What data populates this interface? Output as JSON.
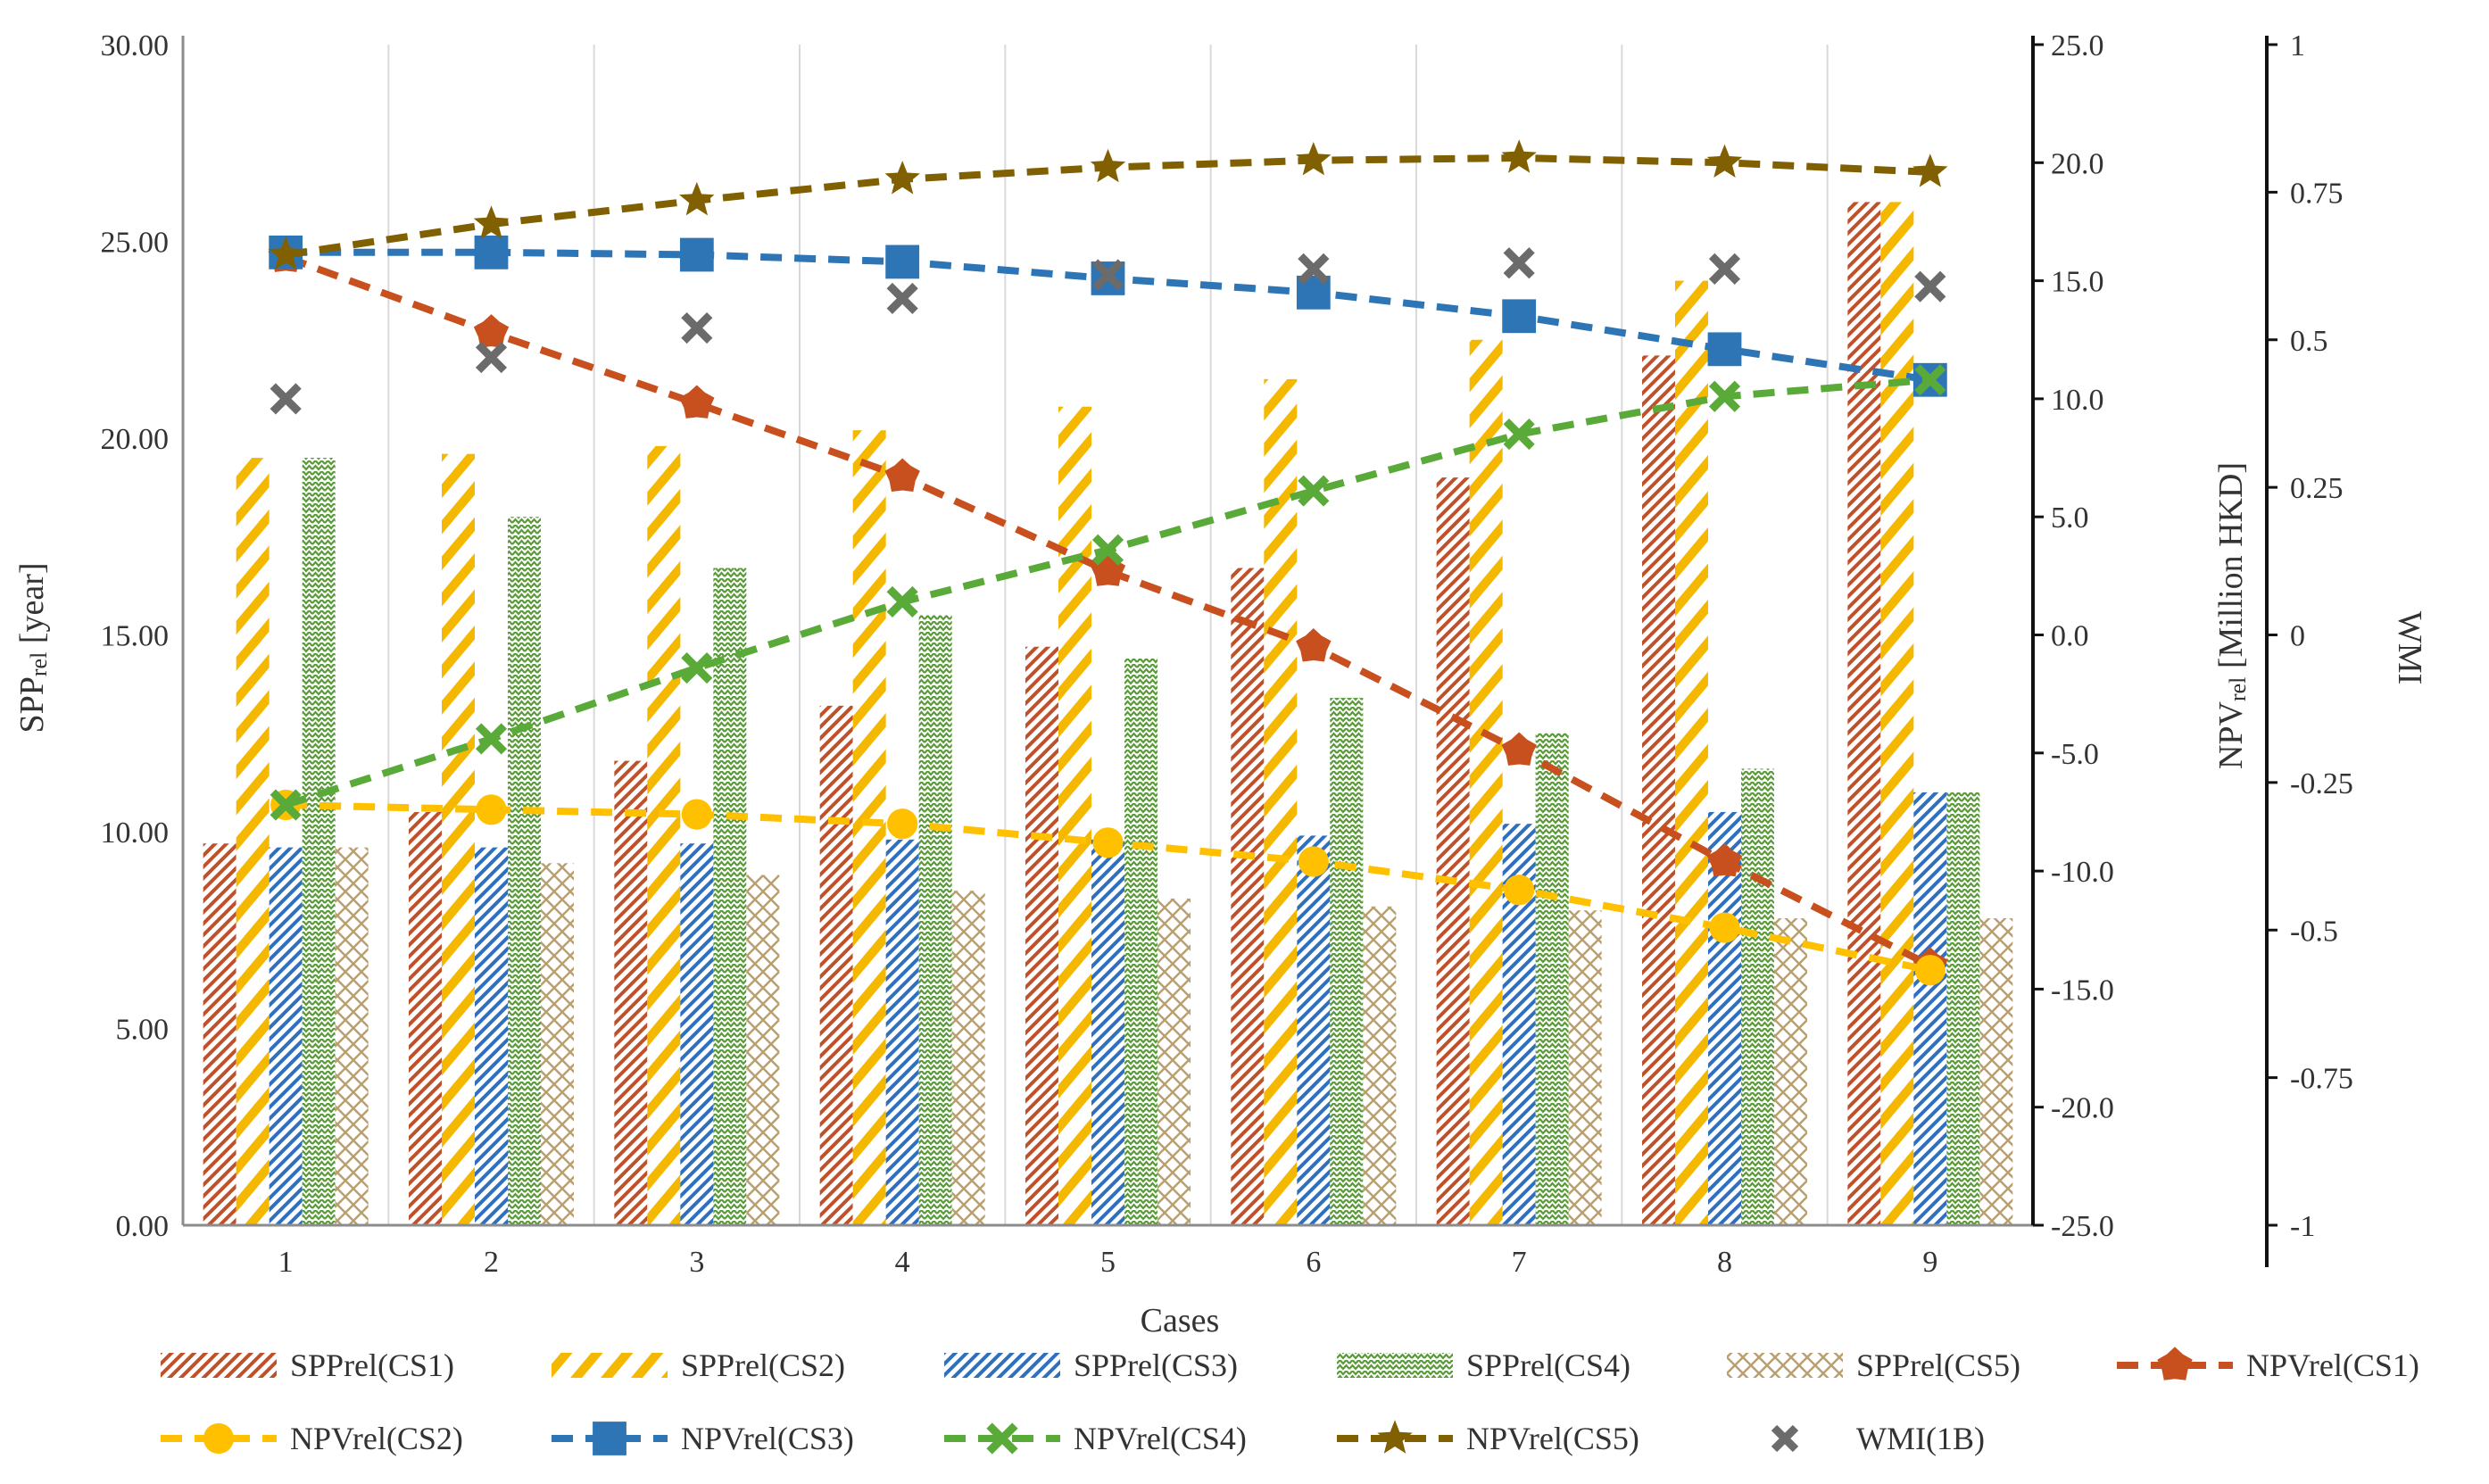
{
  "chart_data": {
    "type": "bar+line",
    "xlabel": "Cases",
    "categories": [
      "1",
      "2",
      "3",
      "4",
      "5",
      "6",
      "7",
      "8",
      "9"
    ],
    "y_left": {
      "label": "SPPrel [year]",
      "range": [
        0,
        30
      ],
      "ticks": [
        "0.00",
        "5.00",
        "10.00",
        "15.00",
        "20.00",
        "25.00",
        "30.00"
      ]
    },
    "y_right1": {
      "label": "NPVrel [Million HKD]",
      "range": [
        -25,
        25
      ],
      "ticks": [
        "-25.0",
        "-20.0",
        "-15.0",
        "-10.0",
        "-5.0",
        "0.0",
        "5.0",
        "10.0",
        "15.0",
        "20.0",
        "25.0"
      ]
    },
    "y_right2": {
      "label": "WMI",
      "range": [
        -1,
        1
      ],
      "ticks": [
        "-1",
        "-0.75",
        "-0.5",
        "-0.25",
        "0",
        "0.25",
        "0.5",
        "0.75",
        "1"
      ]
    },
    "bar_series": [
      {
        "name": "SPPrel(CS1)",
        "color": "#c0502a",
        "pattern": "dense-diag",
        "values": [
          9.7,
          10.5,
          11.8,
          13.2,
          14.7,
          16.7,
          19.0,
          22.1,
          26.0
        ]
      },
      {
        "name": "SPPrel(CS2)",
        "color": "#f5b800",
        "pattern": "wide-diag",
        "values": [
          19.5,
          19.6,
          19.8,
          20.2,
          20.8,
          21.5,
          22.5,
          24.0,
          26.0
        ]
      },
      {
        "name": "SPPrel(CS3)",
        "color": "#2f6fbf",
        "pattern": "dense-diag",
        "values": [
          9.6,
          9.6,
          9.7,
          9.8,
          9.8,
          9.9,
          10.2,
          10.5,
          11.0
        ]
      },
      {
        "name": "SPPrel(CS4)",
        "color": "#5a9a3a",
        "pattern": "zigzag",
        "values": [
          19.5,
          18.0,
          16.7,
          15.5,
          14.4,
          13.4,
          12.5,
          11.6,
          11.0
        ]
      },
      {
        "name": "SPPrel(CS5)",
        "color": "#b8a070",
        "pattern": "cross",
        "values": [
          9.6,
          9.2,
          8.9,
          8.5,
          8.3,
          8.1,
          8.0,
          7.8,
          7.8
        ]
      }
    ],
    "line_series": [
      {
        "name": "NPVrel(CS1)",
        "axis": "y_right1",
        "color": "#c8501e",
        "marker": "pentagon",
        "values": [
          16.0,
          12.8,
          9.8,
          6.7,
          2.7,
          -0.5,
          -4.9,
          -9.6,
          -14.0
        ]
      },
      {
        "name": "NPVrel(CS2)",
        "axis": "y_right1",
        "color": "#ffc000",
        "marker": "circle",
        "values": [
          -7.2,
          -7.4,
          -7.6,
          -8.0,
          -8.8,
          -9.6,
          -10.8,
          -12.4,
          -14.2
        ]
      },
      {
        "name": "NPVrel(CS3)",
        "axis": "y_right1",
        "color": "#2e75b6",
        "marker": "square",
        "values": [
          16.2,
          16.2,
          16.1,
          15.8,
          15.1,
          14.5,
          13.5,
          12.1,
          10.8
        ]
      },
      {
        "name": "NPVrel(CS4)",
        "axis": "y_right1",
        "color": "#5aaa3a",
        "marker": "x",
        "values": [
          -7.2,
          -4.4,
          -1.4,
          1.4,
          3.6,
          6.1,
          8.5,
          10.1,
          10.8
        ]
      },
      {
        "name": "NPVrel(CS5)",
        "axis": "y_right1",
        "color": "#806000",
        "marker": "star",
        "values": [
          16.1,
          17.4,
          18.4,
          19.3,
          19.8,
          20.1,
          20.2,
          20.0,
          19.6
        ]
      }
    ],
    "scatter_series": [
      {
        "name": "WMI(1B)",
        "axis": "y_right2",
        "color": "#6b6b6b",
        "marker": "x",
        "values": [
          0.4,
          0.47,
          0.52,
          0.57,
          0.61,
          0.62,
          0.63,
          0.62,
          0.59
        ]
      }
    ],
    "legend_position": "bottom"
  }
}
